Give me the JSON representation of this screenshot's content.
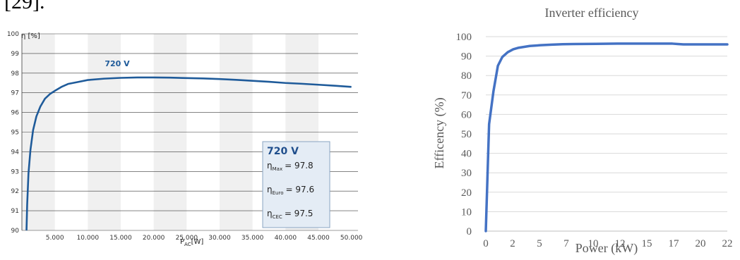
{
  "header_fragment": "[29].",
  "chart_data": [
    {
      "type": "line",
      "ylabel": "η [%]",
      "xlabel": "P_AC [W]",
      "xlabel_main": "P",
      "xlabel_sub": "AC",
      "xlabel_unit": "[W]",
      "ylim": [
        90,
        100
      ],
      "xlim": [
        0,
        51000
      ],
      "y_ticks": [
        90,
        91,
        92,
        93,
        94,
        95,
        96,
        97,
        98,
        99,
        100
      ],
      "x_ticks": [
        5000,
        10000,
        15000,
        20000,
        25000,
        30000,
        35000,
        40000,
        45000,
        50000
      ],
      "x_tick_labels": [
        "5.000",
        "10.000",
        "15.000",
        "20.000",
        "25.000",
        "30.000",
        "35.000",
        "40.000",
        "45.000",
        "50.000"
      ],
      "grid": true,
      "series": [
        {
          "name": "720 V",
          "color": "#1f5b9a",
          "x": [
            700,
            800,
            1000,
            1300,
            1700,
            2200,
            2800,
            3500,
            4300,
            5000,
            6000,
            7000,
            8500,
            10000,
            12500,
            15000,
            17500,
            20000,
            22500,
            25000,
            27500,
            30000,
            32500,
            35000,
            37500,
            40000,
            42500,
            45000,
            47500,
            50000
          ],
          "y": [
            90.0,
            91.3,
            92.9,
            94.1,
            95.1,
            95.8,
            96.3,
            96.7,
            96.95,
            97.1,
            97.3,
            97.45,
            97.55,
            97.65,
            97.72,
            97.76,
            97.78,
            97.78,
            97.77,
            97.75,
            97.73,
            97.7,
            97.66,
            97.61,
            97.56,
            97.5,
            97.46,
            97.41,
            97.36,
            97.3
          ]
        }
      ],
      "legend_box": {
        "title": "720 V",
        "rows": [
          {
            "label": "η",
            "sub": "Max",
            "value": "= 97.8"
          },
          {
            "label": "η",
            "sub": "Euro",
            "value": "= 97.6"
          },
          {
            "label": "η",
            "sub": "CEC",
            "value": "= 97.5"
          }
        ]
      },
      "colors": {
        "line": "#1f5b9a",
        "band": "#f0f0f0",
        "grid": "#3a3a3a",
        "legend_fill": "#e4ecf5",
        "legend_border": "#8aa4c2"
      }
    },
    {
      "type": "line",
      "title": "Inverter efficiency",
      "xlabel": "Power (kW)",
      "ylabel": "Efficency (%)",
      "ylim": [
        0,
        100
      ],
      "xlim": [
        0,
        22
      ],
      "y_ticks": [
        0,
        10,
        20,
        30,
        40,
        50,
        60,
        70,
        80,
        90,
        100
      ],
      "x_tick_labels": [
        "0",
        "2",
        "5",
        "7",
        "10",
        "12",
        "15",
        "17",
        "20",
        "22"
      ],
      "grid": true,
      "series": [
        {
          "color": "#4472c4",
          "x": [
            0.0,
            0.3,
            0.7,
            1.1,
            1.5,
            2.0,
            2.5,
            3.0,
            4.0,
            5.0,
            6.0,
            7.0,
            8.0,
            10.0,
            12.0,
            14.0,
            16.0,
            17.0,
            17.5,
            18.0,
            20.0,
            22.0
          ],
          "y": [
            0,
            55,
            72,
            85,
            89.5,
            92,
            93.5,
            94.3,
            95.2,
            95.6,
            95.9,
            96.1,
            96.2,
            96.3,
            96.4,
            96.4,
            96.4,
            96.4,
            96.2,
            96.0,
            96.0,
            96.0
          ]
        }
      ],
      "colors": {
        "line": "#4472c4",
        "grid": "#d9d9d9",
        "axis": "#bfbfbf"
      }
    }
  ]
}
